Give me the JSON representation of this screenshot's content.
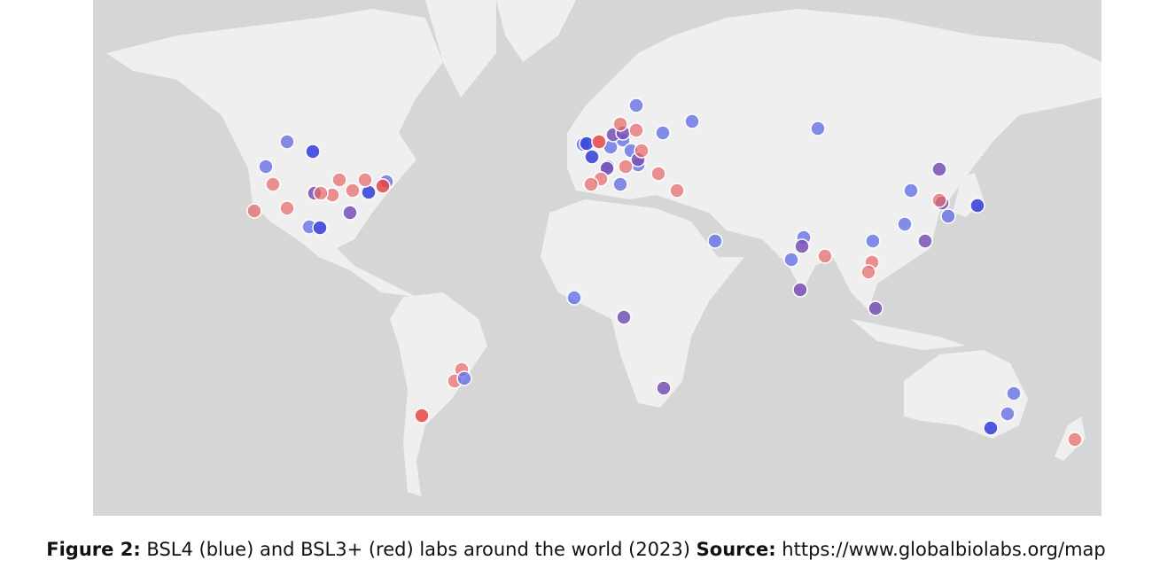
{
  "figure": {
    "label": "Figure 2:",
    "caption": "BSL4 (blue) and BSL3+ (red) labs around the world (2023)",
    "source_label": "Source:",
    "source_url": "https://www.globalbiolabs.org/map"
  }
}
